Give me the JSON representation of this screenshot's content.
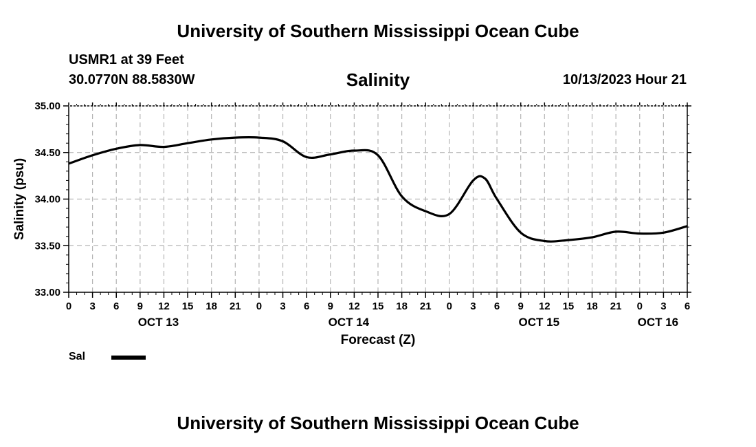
{
  "header": {
    "title_top": "University of Southern Mississippi Ocean Cube",
    "station": "USMR1 at 39 Feet",
    "coords": "30.0770N  88.5830W",
    "variable": "Salinity",
    "date": "10/13/2023 Hour 21",
    "title_bottom": "University of Southern Mississippi Ocean Cube"
  },
  "legend": {
    "label": "Sal"
  },
  "chart_data": {
    "type": "line",
    "title": "Salinity",
    "xlabel": "Forecast (Z)",
    "ylabel": "Salinity (psu)",
    "ylim": [
      33.0,
      35.0
    ],
    "y_ticks": [
      "33.00",
      "33.50",
      "34.00",
      "34.50",
      "35.00"
    ],
    "xlim_hours": [
      0,
      78
    ],
    "x_tick_labels": [
      "0",
      "3",
      "6",
      "9",
      "12",
      "15",
      "18",
      "21",
      "0",
      "3",
      "6",
      "9",
      "12",
      "15",
      "18",
      "21",
      "0",
      "3",
      "6",
      "9",
      "12",
      "15",
      "18",
      "21",
      "0",
      "3",
      "6"
    ],
    "day_labels": [
      {
        "hour": 12,
        "label": "OCT 13"
      },
      {
        "hour": 36,
        "label": "OCT 14"
      },
      {
        "hour": 60,
        "label": "OCT 15"
      },
      {
        "hour": 75,
        "label": "OCT 16"
      }
    ],
    "grid": true,
    "series": [
      {
        "name": "Sal",
        "color": "#000000",
        "x": [
          0,
          3,
          6,
          9,
          12,
          15,
          18,
          21,
          24,
          27,
          30,
          33,
          36,
          39,
          42,
          45,
          48,
          51,
          52.5,
          54,
          57,
          60,
          63,
          66,
          69,
          72,
          75,
          78
        ],
        "y": [
          34.38,
          34.47,
          34.54,
          34.58,
          34.56,
          34.6,
          34.64,
          34.66,
          34.66,
          34.62,
          34.45,
          34.48,
          34.52,
          34.47,
          34.03,
          33.87,
          33.84,
          34.2,
          34.22,
          34.0,
          33.64,
          33.55,
          33.56,
          33.59,
          33.65,
          33.63,
          33.64,
          33.71
        ]
      }
    ]
  }
}
